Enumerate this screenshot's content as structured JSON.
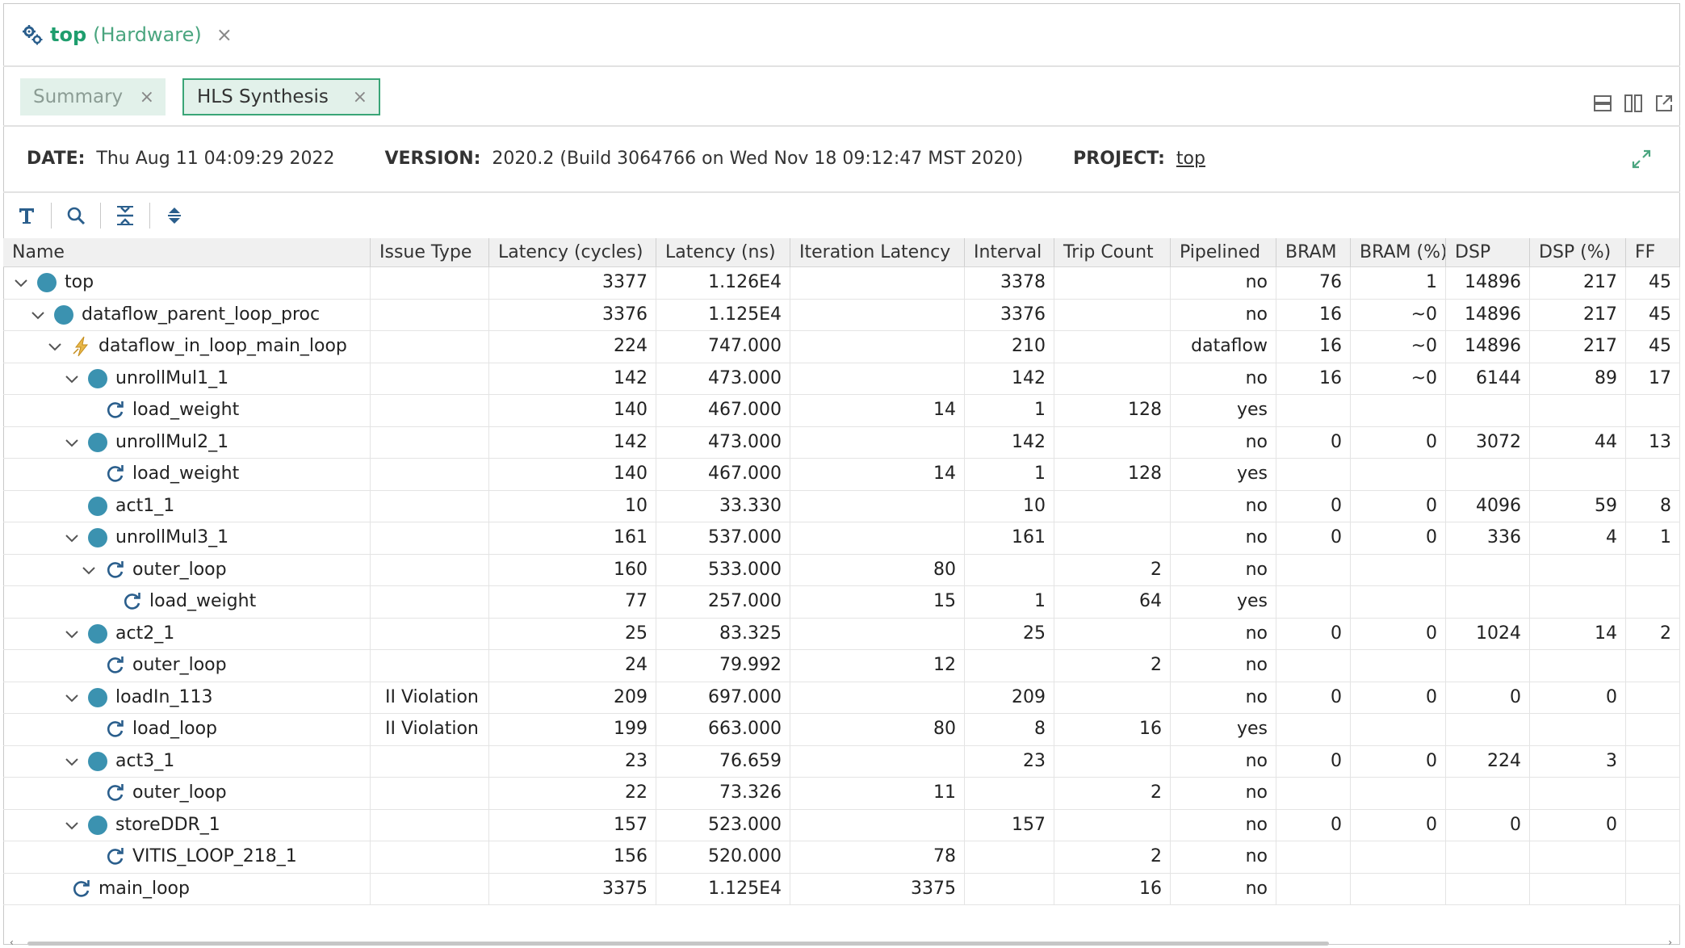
{
  "editor_tab": {
    "title": "top",
    "subtitle": "(Hardware)",
    "close": "×"
  },
  "tabs": [
    {
      "label": "Summary",
      "close": "×",
      "active": false
    },
    {
      "label": "HLS Synthesis",
      "close": "×",
      "active": true
    }
  ],
  "info": {
    "date_label": "DATE:",
    "date_value": "Thu Aug 11 04:09:29 2022",
    "version_label": "VERSION:",
    "version_value": "2020.2 (Build 3064766 on Wed Nov 18 09:12:47 MST 2020)",
    "project_label": "PROJECT:",
    "project_value": "top"
  },
  "toolbar": {
    "icons": [
      "text-icon",
      "search-icon",
      "collapse-all-icon",
      "expand-all-icon"
    ]
  },
  "columns": [
    "Name",
    "Issue Type",
    "Latency (cycles)",
    "Latency (ns)",
    "Iteration Latency",
    "Interval",
    "Trip Count",
    "Pipelined",
    "BRAM",
    "BRAM (%)",
    "DSP",
    "DSP (%)",
    "FF"
  ],
  "rows": [
    {
      "name": "top",
      "level": 0,
      "icon": "module",
      "chevron": true,
      "issue": "",
      "lat_cycles": "3377",
      "lat_ns": "1.126E4",
      "iter_lat": "",
      "interval": "3378",
      "trip": "",
      "pipelined": "no",
      "bram": "76",
      "bram_pct": "1",
      "dsp": "14896",
      "dsp_pct": "217",
      "ff": "45"
    },
    {
      "name": "dataflow_parent_loop_proc",
      "level": 1,
      "icon": "module",
      "chevron": true,
      "issue": "",
      "lat_cycles": "3376",
      "lat_ns": "1.125E4",
      "iter_lat": "",
      "interval": "3376",
      "trip": "",
      "pipelined": "no",
      "bram": "16",
      "bram_pct": "~0",
      "dsp": "14896",
      "dsp_pct": "217",
      "ff": "45"
    },
    {
      "name": "dataflow_in_loop_main_loop",
      "level": 2,
      "icon": "dataflow",
      "chevron": true,
      "issue": "",
      "lat_cycles": "224",
      "lat_ns": "747.000",
      "iter_lat": "",
      "interval": "210",
      "trip": "",
      "pipelined": "dataflow",
      "bram": "16",
      "bram_pct": "~0",
      "dsp": "14896",
      "dsp_pct": "217",
      "ff": "45"
    },
    {
      "name": "unrollMul1_1",
      "level": 3,
      "icon": "module",
      "chevron": true,
      "issue": "",
      "lat_cycles": "142",
      "lat_ns": "473.000",
      "iter_lat": "",
      "interval": "142",
      "trip": "",
      "pipelined": "no",
      "bram": "16",
      "bram_pct": "~0",
      "dsp": "6144",
      "dsp_pct": "89",
      "ff": "17"
    },
    {
      "name": "load_weight",
      "level": 4,
      "icon": "loop",
      "chevron": false,
      "issue": "",
      "lat_cycles": "140",
      "lat_ns": "467.000",
      "iter_lat": "14",
      "interval": "1",
      "trip": "128",
      "pipelined": "yes",
      "bram": "",
      "bram_pct": "",
      "dsp": "",
      "dsp_pct": "",
      "ff": ""
    },
    {
      "name": "unrollMul2_1",
      "level": 3,
      "icon": "module",
      "chevron": true,
      "issue": "",
      "lat_cycles": "142",
      "lat_ns": "473.000",
      "iter_lat": "",
      "interval": "142",
      "trip": "",
      "pipelined": "no",
      "bram": "0",
      "bram_pct": "0",
      "dsp": "3072",
      "dsp_pct": "44",
      "ff": "13"
    },
    {
      "name": "load_weight",
      "level": 4,
      "icon": "loop",
      "chevron": false,
      "issue": "",
      "lat_cycles": "140",
      "lat_ns": "467.000",
      "iter_lat": "14",
      "interval": "1",
      "trip": "128",
      "pipelined": "yes",
      "bram": "",
      "bram_pct": "",
      "dsp": "",
      "dsp_pct": "",
      "ff": ""
    },
    {
      "name": "act1_1",
      "level": 3,
      "icon": "module",
      "chevron": false,
      "issue": "",
      "lat_cycles": "10",
      "lat_ns": "33.330",
      "iter_lat": "",
      "interval": "10",
      "trip": "",
      "pipelined": "no",
      "bram": "0",
      "bram_pct": "0",
      "dsp": "4096",
      "dsp_pct": "59",
      "ff": "8"
    },
    {
      "name": "unrollMul3_1",
      "level": 3,
      "icon": "module",
      "chevron": true,
      "issue": "",
      "lat_cycles": "161",
      "lat_ns": "537.000",
      "iter_lat": "",
      "interval": "161",
      "trip": "",
      "pipelined": "no",
      "bram": "0",
      "bram_pct": "0",
      "dsp": "336",
      "dsp_pct": "4",
      "ff": "1"
    },
    {
      "name": "outer_loop",
      "level": 4,
      "icon": "loop",
      "chevron": true,
      "issue": "",
      "lat_cycles": "160",
      "lat_ns": "533.000",
      "iter_lat": "80",
      "interval": "",
      "trip": "2",
      "pipelined": "no",
      "bram": "",
      "bram_pct": "",
      "dsp": "",
      "dsp_pct": "",
      "ff": ""
    },
    {
      "name": "load_weight",
      "level": 5,
      "icon": "loop",
      "chevron": false,
      "issue": "",
      "lat_cycles": "77",
      "lat_ns": "257.000",
      "iter_lat": "15",
      "interval": "1",
      "trip": "64",
      "pipelined": "yes",
      "bram": "",
      "bram_pct": "",
      "dsp": "",
      "dsp_pct": "",
      "ff": ""
    },
    {
      "name": "act2_1",
      "level": 3,
      "icon": "module",
      "chevron": true,
      "issue": "",
      "lat_cycles": "25",
      "lat_ns": "83.325",
      "iter_lat": "",
      "interval": "25",
      "trip": "",
      "pipelined": "no",
      "bram": "0",
      "bram_pct": "0",
      "dsp": "1024",
      "dsp_pct": "14",
      "ff": "2"
    },
    {
      "name": "outer_loop",
      "level": 4,
      "icon": "loop",
      "chevron": false,
      "issue": "",
      "lat_cycles": "24",
      "lat_ns": "79.992",
      "iter_lat": "12",
      "interval": "",
      "trip": "2",
      "pipelined": "no",
      "bram": "",
      "bram_pct": "",
      "dsp": "",
      "dsp_pct": "",
      "ff": ""
    },
    {
      "name": "loadIn_113",
      "level": 3,
      "icon": "module",
      "chevron": true,
      "issue": "II Violation",
      "lat_cycles": "209",
      "lat_ns": "697.000",
      "iter_lat": "",
      "interval": "209",
      "trip": "",
      "pipelined": "no",
      "bram": "0",
      "bram_pct": "0",
      "dsp": "0",
      "dsp_pct": "0",
      "ff": ""
    },
    {
      "name": "load_loop",
      "level": 4,
      "icon": "loop",
      "chevron": false,
      "issue": "II Violation",
      "lat_cycles": "199",
      "lat_ns": "663.000",
      "iter_lat": "80",
      "interval": "8",
      "trip": "16",
      "pipelined": "yes",
      "bram": "",
      "bram_pct": "",
      "dsp": "",
      "dsp_pct": "",
      "ff": ""
    },
    {
      "name": "act3_1",
      "level": 3,
      "icon": "module",
      "chevron": true,
      "issue": "",
      "lat_cycles": "23",
      "lat_ns": "76.659",
      "iter_lat": "",
      "interval": "23",
      "trip": "",
      "pipelined": "no",
      "bram": "0",
      "bram_pct": "0",
      "dsp": "224",
      "dsp_pct": "3",
      "ff": ""
    },
    {
      "name": "outer_loop",
      "level": 4,
      "icon": "loop",
      "chevron": false,
      "issue": "",
      "lat_cycles": "22",
      "lat_ns": "73.326",
      "iter_lat": "11",
      "interval": "",
      "trip": "2",
      "pipelined": "no",
      "bram": "",
      "bram_pct": "",
      "dsp": "",
      "dsp_pct": "",
      "ff": ""
    },
    {
      "name": "storeDDR_1",
      "level": 3,
      "icon": "module",
      "chevron": true,
      "issue": "",
      "lat_cycles": "157",
      "lat_ns": "523.000",
      "iter_lat": "",
      "interval": "157",
      "trip": "",
      "pipelined": "no",
      "bram": "0",
      "bram_pct": "0",
      "dsp": "0",
      "dsp_pct": "0",
      "ff": ""
    },
    {
      "name": "VITIS_LOOP_218_1",
      "level": 4,
      "icon": "loop",
      "chevron": false,
      "issue": "",
      "lat_cycles": "156",
      "lat_ns": "520.000",
      "iter_lat": "78",
      "interval": "",
      "trip": "2",
      "pipelined": "no",
      "bram": "",
      "bram_pct": "",
      "dsp": "",
      "dsp_pct": "",
      "ff": ""
    },
    {
      "name": "main_loop",
      "level": 2,
      "icon": "loop",
      "chevron": false,
      "issue": "",
      "lat_cycles": "3375",
      "lat_ns": "1.125E4",
      "iter_lat": "3375",
      "interval": "",
      "trip": "16",
      "pipelined": "no",
      "bram": "",
      "bram_pct": "",
      "dsp": "",
      "dsp_pct": "",
      "ff": ""
    }
  ],
  "colors": {
    "accent": "#1f9e6e",
    "module_dot": "#3b92b0",
    "tab_bg": "#e2f1ea",
    "tab_border": "#3aa577",
    "icon_blue": "#2a5e8c"
  }
}
